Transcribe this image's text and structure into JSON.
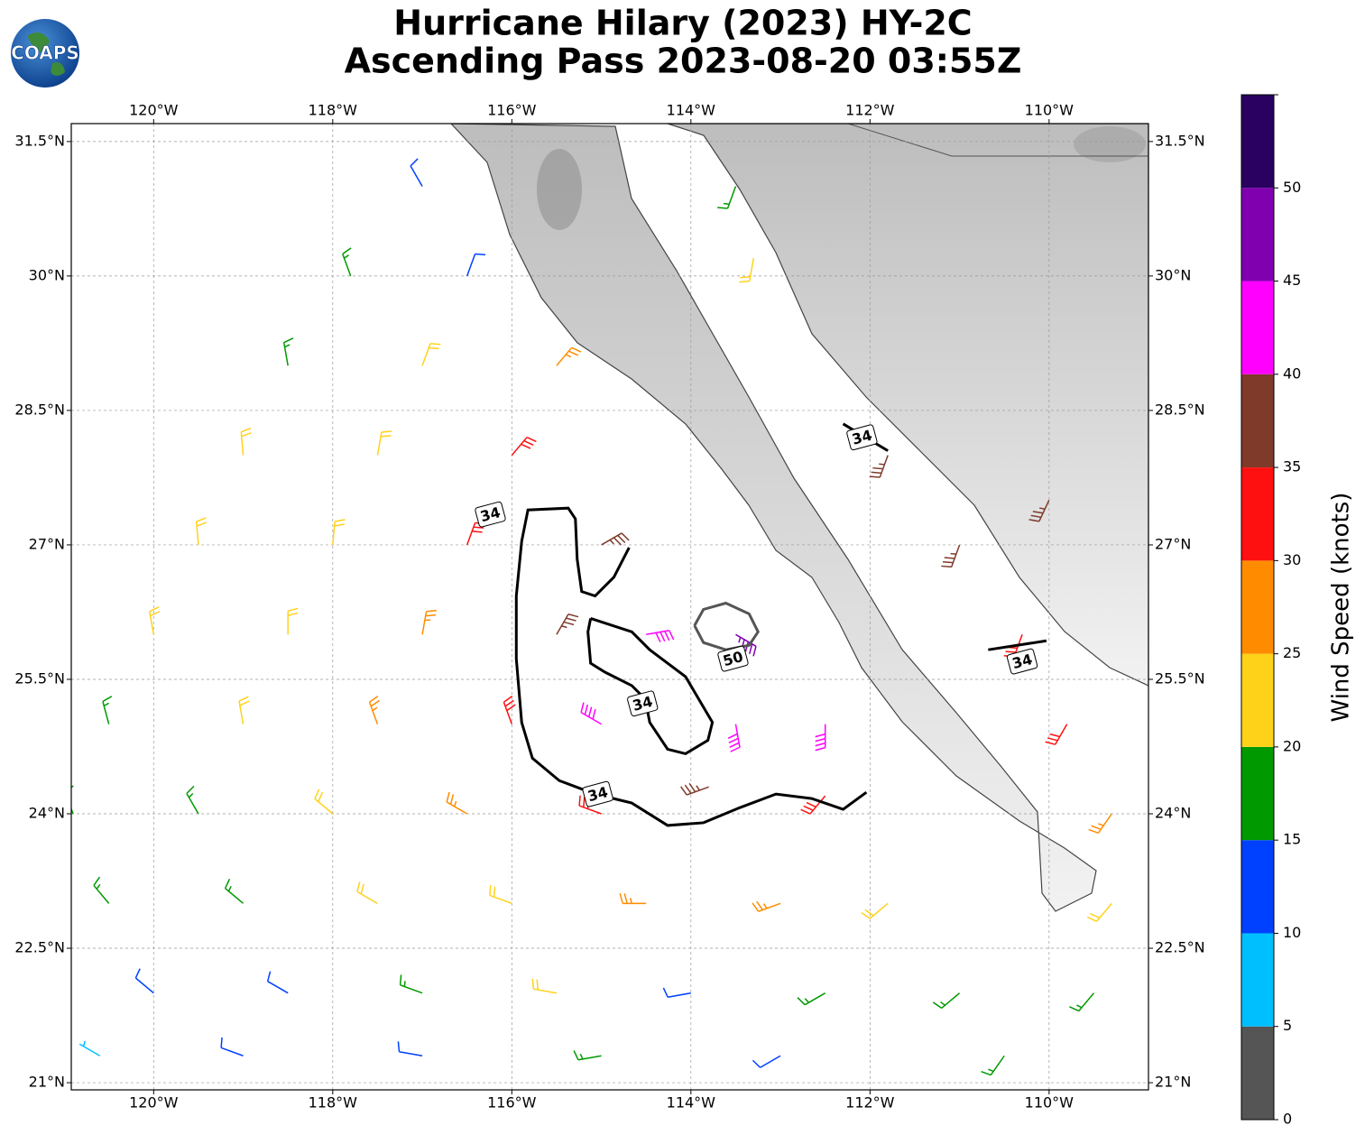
{
  "chart_data": {
    "type": "barbs",
    "title": [
      "Hurricane Hilary (2023) HY-2C",
      "Ascending Pass 2023-08-20 03:55Z"
    ],
    "logo": "COAPS",
    "xlim": [
      -120.92,
      -108.89
    ],
    "ylim": [
      20.92,
      31.7
    ],
    "grid": true,
    "xticks": [
      {
        "value": -120,
        "label": "120°W"
      },
      {
        "value": -118,
        "label": "118°W"
      },
      {
        "value": -116,
        "label": "116°W"
      },
      {
        "value": -114,
        "label": "114°W"
      },
      {
        "value": -112,
        "label": "112°W"
      },
      {
        "value": -110,
        "label": "110°W"
      }
    ],
    "yticks": [
      {
        "value": 21,
        "label": "21°N"
      },
      {
        "value": 22.5,
        "label": "22.5°N"
      },
      {
        "value": 24,
        "label": "24°N"
      },
      {
        "value": 25.5,
        "label": "25.5°N"
      },
      {
        "value": 27,
        "label": "27°N"
      },
      {
        "value": 28.5,
        "label": "28.5°N"
      },
      {
        "value": 30,
        "label": "30°N"
      },
      {
        "value": 31.5,
        "label": "31.5°N"
      }
    ],
    "wind": {
      "lon": [
        -117.0,
        -117.8,
        -116.5,
        -118.5,
        -117.0,
        -115.5,
        -119.0,
        -117.5,
        -116.0,
        -119.5,
        -118.0,
        -116.5,
        -115.0,
        -120.0,
        -118.5,
        -117.0,
        -115.5,
        -114.5,
        -113.5,
        -120.5,
        -119.0,
        -117.5,
        -116.0,
        -115.0,
        -113.5,
        -112.5,
        -120.9,
        -119.5,
        -118.0,
        -116.5,
        -115.0,
        -113.8,
        -112.5,
        -120.5,
        -119.0,
        -117.5,
        -116.0,
        -114.5,
        -113.0,
        -111.8,
        -120.0,
        -118.5,
        -117.0,
        -115.5,
        -114.0,
        -112.5,
        -111.0,
        -109.5,
        -120.6,
        -119.0,
        -117.0,
        -115.0,
        -113.0,
        -110.5,
        -113.5,
        -113.3,
        -111.8,
        -111.0,
        -110.3,
        -109.8,
        -109.3,
        -109.3,
        -110.0
      ],
      "lat": [
        31.0,
        30.0,
        30.0,
        29.0,
        29.0,
        29.0,
        28.0,
        28.0,
        28.0,
        27.0,
        27.0,
        27.0,
        27.0,
        26.0,
        26.0,
        26.0,
        26.0,
        26.0,
        26.0,
        25.0,
        25.0,
        25.0,
        25.0,
        25.0,
        25.0,
        25.0,
        24.0,
        24.0,
        24.0,
        24.0,
        24.0,
        24.3,
        24.2,
        23.0,
        23.0,
        23.0,
        23.0,
        23.0,
        23.0,
        23.0,
        22.0,
        22.0,
        22.0,
        22.0,
        22.0,
        22.0,
        22.0,
        22.0,
        21.3,
        21.3,
        21.3,
        21.3,
        21.3,
        21.3,
        31.0,
        30.2,
        28.0,
        27.0,
        26.0,
        25.0,
        24.0,
        23.0,
        27.5
      ],
      "speed": [
        12,
        18,
        14,
        18,
        22,
        28,
        22,
        24,
        33,
        22,
        24,
        32,
        37,
        22,
        22,
        28,
        38,
        43,
        47,
        18,
        20,
        27,
        33,
        42,
        43,
        40,
        15,
        18,
        22,
        26,
        31,
        37,
        33,
        15,
        17,
        20,
        23,
        25,
        26,
        23,
        12,
        14,
        17,
        20,
        14,
        17,
        18,
        18,
        7,
        12,
        13,
        17,
        14,
        17,
        18,
        22,
        37,
        37,
        33,
        32,
        27,
        22,
        37
      ],
      "dir": [
        330,
        340,
        20,
        350,
        20,
        40,
        355,
        10,
        40,
        355,
        5,
        20,
        60,
        350,
        0,
        10,
        30,
        80,
        120,
        345,
        350,
        340,
        340,
        300,
        170,
        180,
        340,
        330,
        310,
        300,
        290,
        250,
        220,
        320,
        310,
        300,
        290,
        270,
        250,
        230,
        310,
        300,
        290,
        280,
        260,
        240,
        230,
        220,
        300,
        290,
        280,
        260,
        240,
        215,
        200,
        190,
        200,
        200,
        200,
        210,
        215,
        220,
        205
      ]
    },
    "contours": [
      {
        "level": 34,
        "color": "#000000",
        "lon": [
          -114.69,
          -114.86,
          -115.07,
          -115.22,
          -115.27,
          -115.29,
          -115.37,
          -115.82,
          -115.89,
          -115.95,
          -115.95,
          -115.89,
          -115.77,
          -115.47,
          -115.07,
          -114.66,
          -114.26,
          -113.86,
          -113.45,
          -113.05,
          -112.65,
          -112.3,
          -112.04
        ],
        "lat": [
          26.97,
          26.64,
          26.43,
          26.48,
          26.84,
          27.29,
          27.41,
          27.39,
          27.04,
          26.43,
          25.73,
          25.02,
          24.62,
          24.37,
          24.22,
          24.12,
          23.87,
          23.9,
          24.07,
          24.22,
          24.17,
          24.05,
          24.24
        ],
        "labels": [
          [
            -115.04,
            24.22
          ],
          [
            -116.24,
            27.34
          ]
        ]
      },
      {
        "level": 34,
        "color": "#000000",
        "lon": [
          -115.12,
          -114.66,
          -114.46,
          -114.06,
          -113.76,
          -113.81,
          -114.06,
          -114.26,
          -114.46,
          -114.51,
          -114.66,
          -114.96,
          -115.12,
          -115.15,
          -115.12
        ],
        "lat": [
          26.18,
          26.03,
          25.83,
          25.53,
          25.02,
          24.82,
          24.67,
          24.72,
          25.02,
          25.28,
          25.43,
          25.58,
          25.68,
          26.03,
          26.18
        ],
        "labels": [
          [
            -114.54,
            25.23
          ]
        ]
      },
      {
        "level": 34,
        "color": "#000000",
        "lon": [
          -112.3,
          -111.8
        ],
        "lat": [
          28.35,
          28.05
        ],
        "labels": [
          [
            -112.09,
            28.2
          ]
        ]
      },
      {
        "level": 34,
        "color": "#000000",
        "lon": [
          -110.68,
          -110.03
        ],
        "lat": [
          25.83,
          25.93
        ],
        "labels": [
          [
            -110.3,
            25.7
          ]
        ]
      },
      {
        "level": 50,
        "color": "#555555",
        "lon": [
          -113.96,
          -113.86,
          -113.61,
          -113.35,
          -113.25,
          -113.35,
          -113.61,
          -113.86,
          -113.96
        ],
        "lat": [
          26.1,
          26.28,
          26.35,
          26.23,
          26.03,
          25.88,
          25.83,
          25.91,
          26.1
        ],
        "labels": [
          [
            -113.53,
            25.73
          ]
        ]
      }
    ],
    "colorbar": {
      "label": "Wind Speed (knots)",
      "bounds": [
        0,
        5,
        10,
        15,
        20,
        25,
        30,
        35,
        40,
        45,
        50,
        55
      ],
      "colors": [
        "#555555",
        "#00bfff",
        "#0040ff",
        "#009900",
        "#ffd21a",
        "#ff8c00",
        "#ff1010",
        "#7f3a2a",
        "#ff00ff",
        "#8000b0",
        "#2a0060"
      ],
      "ticks": [
        0,
        5,
        10,
        15,
        20,
        25,
        30,
        35,
        40,
        45,
        50
      ]
    }
  }
}
